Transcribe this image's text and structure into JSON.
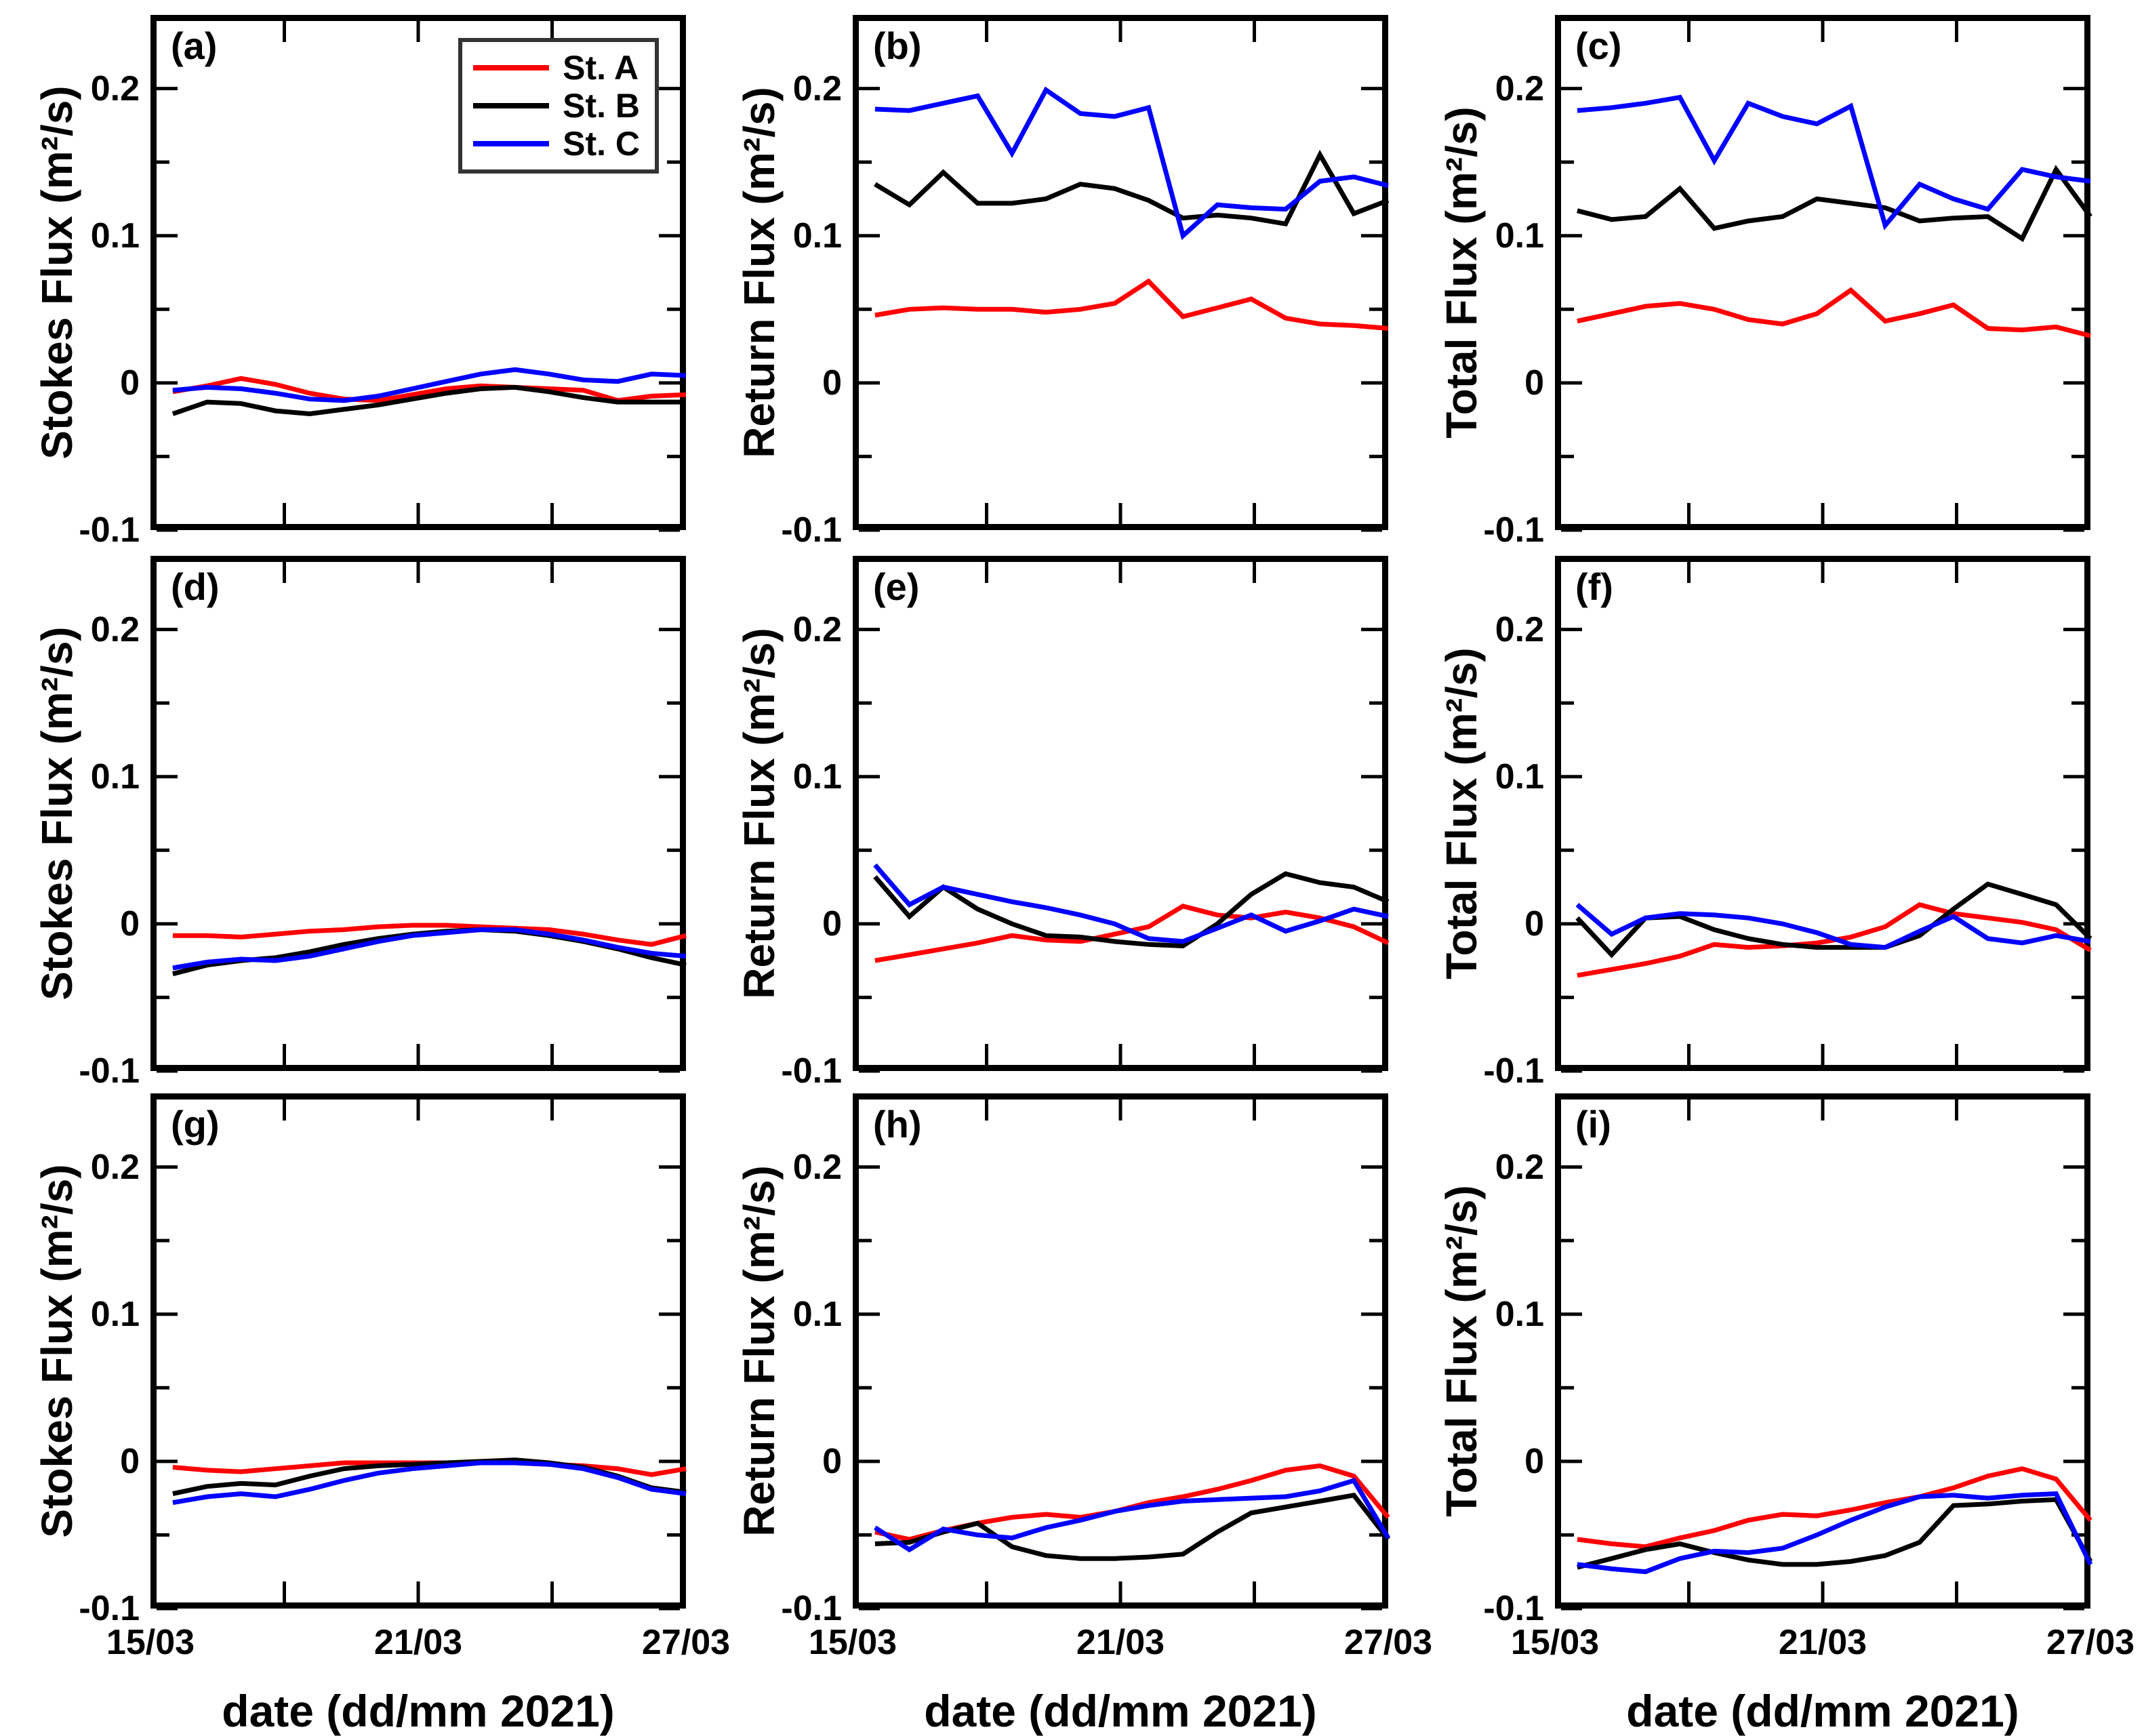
{
  "figure": {
    "background": "#ffffff"
  },
  "colors": {
    "st_a": "#ff0000",
    "st_b": "#000000",
    "st_c": "#0000ff",
    "axis": "#000000",
    "legend_border": "#333333"
  },
  "chart_data": {
    "type": "line",
    "layout": "3x3",
    "x_label": "date (dd/mm 2021)",
    "xlim": [
      15,
      27
    ],
    "ylim": [
      -0.1,
      0.25
    ],
    "grid": false,
    "x": [
      15.5,
      16.27,
      17.03,
      17.8,
      18.57,
      19.33,
      20.1,
      20.87,
      21.63,
      22.4,
      23.17,
      23.93,
      24.7,
      25.47,
      26.23,
      27.0
    ],
    "x_ticks": {
      "labels": [
        "15/03",
        "21/03",
        "27/03"
      ],
      "values": [
        15,
        21,
        27
      ],
      "inner_ticks": [
        18,
        21,
        24
      ]
    },
    "y_ticks": {
      "labels": [
        "0.2",
        "0.1",
        "0",
        "-0.1"
      ],
      "values": [
        0.2,
        0.1,
        0,
        -0.1
      ],
      "minor": [
        0.15,
        0.05,
        -0.05
      ]
    },
    "legend": {
      "location": "panel-a-top-right",
      "entries": [
        {
          "label": "St. A",
          "color": "#ff0000"
        },
        {
          "label": "St. B",
          "color": "#000000"
        },
        {
          "label": "St. C",
          "color": "#0000ff"
        }
      ]
    },
    "panels": [
      {
        "letter": "(a)",
        "row": 1,
        "col": 1,
        "ylabel": "Stokes Flux (m²/s)",
        "series": [
          {
            "name": "St. A",
            "color": "#ff0000",
            "values": [
              -0.006,
              -0.002,
              0.003,
              -0.001,
              -0.007,
              -0.011,
              -0.012,
              -0.008,
              -0.004,
              -0.002,
              -0.003,
              -0.004,
              -0.005,
              -0.012,
              -0.009,
              -0.008
            ]
          },
          {
            "name": "St. B",
            "color": "#000000",
            "values": [
              -0.021,
              -0.013,
              -0.014,
              -0.019,
              -0.021,
              -0.018,
              -0.015,
              -0.011,
              -0.007,
              -0.004,
              -0.003,
              -0.006,
              -0.01,
              -0.013,
              -0.013,
              -0.013
            ]
          },
          {
            "name": "St. C",
            "color": "#0000ff",
            "values": [
              -0.005,
              -0.003,
              -0.004,
              -0.007,
              -0.011,
              -0.012,
              -0.009,
              -0.004,
              0.001,
              0.006,
              0.009,
              0.006,
              0.002,
              0.001,
              0.006,
              0.005
            ]
          }
        ]
      },
      {
        "letter": "(b)",
        "row": 1,
        "col": 2,
        "ylabel": "Return Flux (m²/s)",
        "series": [
          {
            "name": "St. A",
            "color": "#ff0000",
            "values": [
              0.046,
              0.05,
              0.051,
              0.05,
              0.05,
              0.048,
              0.05,
              0.054,
              0.069,
              0.045,
              0.051,
              0.057,
              0.044,
              0.04,
              0.039,
              0.037
            ]
          },
          {
            "name": "St. B",
            "color": "#000000",
            "values": [
              0.135,
              0.121,
              0.143,
              0.122,
              0.122,
              0.125,
              0.135,
              0.132,
              0.124,
              0.112,
              0.114,
              0.112,
              0.108,
              0.155,
              0.115,
              0.124
            ]
          },
          {
            "name": "St. C",
            "color": "#0000ff",
            "values": [
              0.186,
              0.185,
              0.19,
              0.195,
              0.156,
              0.199,
              0.183,
              0.181,
              0.187,
              0.1,
              0.121,
              0.119,
              0.118,
              0.137,
              0.14,
              0.134
            ]
          }
        ]
      },
      {
        "letter": "(c)",
        "row": 1,
        "col": 3,
        "ylabel": "Total Flux (m²/s)",
        "series": [
          {
            "name": "St. A",
            "color": "#ff0000",
            "values": [
              0.042,
              0.047,
              0.052,
              0.054,
              0.05,
              0.043,
              0.04,
              0.047,
              0.063,
              0.042,
              0.047,
              0.053,
              0.037,
              0.036,
              0.038,
              0.032
            ]
          },
          {
            "name": "St. B",
            "color": "#000000",
            "values": [
              0.117,
              0.111,
              0.113,
              0.132,
              0.105,
              0.11,
              0.113,
              0.125,
              0.122,
              0.119,
              0.11,
              0.112,
              0.113,
              0.098,
              0.145,
              0.113
            ]
          },
          {
            "name": "St. C",
            "color": "#0000ff",
            "values": [
              0.185,
              0.187,
              0.19,
              0.194,
              0.151,
              0.19,
              0.181,
              0.176,
              0.188,
              0.107,
              0.135,
              0.125,
              0.118,
              0.145,
              0.14,
              0.137
            ]
          }
        ]
      },
      {
        "letter": "(d)",
        "row": 2,
        "col": 1,
        "ylabel": "Stokes Flux (m²/s)",
        "series": [
          {
            "name": "St. A",
            "color": "#ff0000",
            "values": [
              -0.008,
              -0.008,
              -0.009,
              -0.007,
              -0.005,
              -0.004,
              -0.002,
              -0.001,
              -0.001,
              -0.002,
              -0.003,
              -0.004,
              -0.007,
              -0.011,
              -0.014,
              -0.008
            ]
          },
          {
            "name": "St. B",
            "color": "#000000",
            "values": [
              -0.034,
              -0.028,
              -0.025,
              -0.023,
              -0.019,
              -0.014,
              -0.01,
              -0.007,
              -0.005,
              -0.004,
              -0.005,
              -0.008,
              -0.012,
              -0.017,
              -0.023,
              -0.028
            ]
          },
          {
            "name": "St. C",
            "color": "#0000ff",
            "values": [
              -0.03,
              -0.026,
              -0.024,
              -0.025,
              -0.022,
              -0.017,
              -0.012,
              -0.008,
              -0.006,
              -0.004,
              -0.004,
              -0.007,
              -0.011,
              -0.016,
              -0.02,
              -0.022
            ]
          }
        ]
      },
      {
        "letter": "(e)",
        "row": 2,
        "col": 2,
        "ylabel": "Return Flux (m²/s)",
        "series": [
          {
            "name": "St. A",
            "color": "#ff0000",
            "values": [
              -0.025,
              -0.021,
              -0.017,
              -0.013,
              -0.008,
              -0.011,
              -0.012,
              -0.007,
              -0.002,
              0.012,
              0.006,
              0.004,
              0.008,
              0.004,
              -0.002,
              -0.013
            ]
          },
          {
            "name": "St. B",
            "color": "#000000",
            "values": [
              0.032,
              0.005,
              0.025,
              0.01,
              0.0,
              -0.008,
              -0.009,
              -0.012,
              -0.014,
              -0.015,
              0.0,
              0.02,
              0.034,
              0.028,
              0.025,
              0.015
            ]
          },
          {
            "name": "St. C",
            "color": "#0000ff",
            "values": [
              0.04,
              0.013,
              0.025,
              0.02,
              0.015,
              0.011,
              0.006,
              0.0,
              -0.01,
              -0.012,
              -0.003,
              0.006,
              -0.005,
              0.002,
              0.01,
              0.005
            ]
          }
        ]
      },
      {
        "letter": "(f)",
        "row": 2,
        "col": 3,
        "ylabel": "Total Flux (m²/s)",
        "series": [
          {
            "name": "St. A",
            "color": "#ff0000",
            "values": [
              -0.035,
              -0.031,
              -0.027,
              -0.022,
              -0.014,
              -0.016,
              -0.015,
              -0.013,
              -0.009,
              -0.002,
              0.013,
              0.007,
              0.004,
              0.001,
              -0.004,
              -0.018
            ]
          },
          {
            "name": "St. B",
            "color": "#000000",
            "values": [
              0.004,
              -0.021,
              0.004,
              0.005,
              -0.004,
              -0.01,
              -0.014,
              -0.016,
              -0.016,
              -0.016,
              -0.008,
              0.01,
              0.027,
              0.02,
              0.013,
              -0.01
            ]
          },
          {
            "name": "St. C",
            "color": "#0000ff",
            "values": [
              0.013,
              -0.007,
              0.004,
              0.007,
              0.006,
              0.004,
              0.0,
              -0.006,
              -0.014,
              -0.016,
              -0.005,
              0.005,
              -0.01,
              -0.013,
              -0.008,
              -0.012
            ]
          }
        ]
      },
      {
        "letter": "(g)",
        "row": 3,
        "col": 1,
        "ylabel": "Stokes Flux (m²/s)",
        "series": [
          {
            "name": "St. A",
            "color": "#ff0000",
            "values": [
              -0.004,
              -0.006,
              -0.007,
              -0.005,
              -0.003,
              -0.001,
              -0.001,
              -0.001,
              -0.001,
              -0.001,
              -0.001,
              -0.002,
              -0.003,
              -0.005,
              -0.009,
              -0.005
            ]
          },
          {
            "name": "St. B",
            "color": "#000000",
            "values": [
              -0.022,
              -0.017,
              -0.015,
              -0.016,
              -0.01,
              -0.005,
              -0.003,
              -0.002,
              -0.001,
              0.0,
              0.001,
              -0.001,
              -0.004,
              -0.01,
              -0.018,
              -0.021
            ]
          },
          {
            "name": "St. C",
            "color": "#0000ff",
            "values": [
              -0.028,
              -0.024,
              -0.022,
              -0.024,
              -0.019,
              -0.013,
              -0.008,
              -0.005,
              -0.003,
              -0.001,
              -0.001,
              -0.002,
              -0.005,
              -0.011,
              -0.019,
              -0.022
            ]
          }
        ]
      },
      {
        "letter": "(h)",
        "row": 3,
        "col": 2,
        "ylabel": "Return Flux (m²/s)",
        "series": [
          {
            "name": "St. A",
            "color": "#ff0000",
            "values": [
              -0.048,
              -0.053,
              -0.047,
              -0.042,
              -0.038,
              -0.036,
              -0.038,
              -0.034,
              -0.028,
              -0.024,
              -0.019,
              -0.013,
              -0.006,
              -0.003,
              -0.01,
              -0.038
            ]
          },
          {
            "name": "St. B",
            "color": "#000000",
            "values": [
              -0.056,
              -0.055,
              -0.048,
              -0.042,
              -0.058,
              -0.064,
              -0.066,
              -0.066,
              -0.065,
              -0.063,
              -0.048,
              -0.035,
              -0.031,
              -0.027,
              -0.023,
              -0.053
            ]
          },
          {
            "name": "St. C",
            "color": "#0000ff",
            "values": [
              -0.045,
              -0.06,
              -0.046,
              -0.05,
              -0.052,
              -0.045,
              -0.04,
              -0.034,
              -0.03,
              -0.027,
              -0.026,
              -0.025,
              -0.024,
              -0.02,
              -0.013,
              -0.052
            ]
          }
        ]
      },
      {
        "letter": "(i)",
        "row": 3,
        "col": 3,
        "ylabel": "Total Flux (m²/s)",
        "series": [
          {
            "name": "St. A",
            "color": "#ff0000",
            "values": [
              -0.053,
              -0.056,
              -0.058,
              -0.052,
              -0.047,
              -0.04,
              -0.036,
              -0.037,
              -0.033,
              -0.028,
              -0.024,
              -0.018,
              -0.01,
              -0.005,
              -0.012,
              -0.04
            ]
          },
          {
            "name": "St. B",
            "color": "#000000",
            "values": [
              -0.072,
              -0.066,
              -0.06,
              -0.056,
              -0.062,
              -0.067,
              -0.07,
              -0.07,
              -0.068,
              -0.064,
              -0.055,
              -0.03,
              -0.029,
              -0.027,
              -0.026,
              -0.068
            ]
          },
          {
            "name": "St. C",
            "color": "#0000ff",
            "values": [
              -0.07,
              -0.073,
              -0.075,
              -0.066,
              -0.061,
              -0.062,
              -0.059,
              -0.05,
              -0.04,
              -0.031,
              -0.024,
              -0.023,
              -0.025,
              -0.023,
              -0.022,
              -0.07
            ]
          }
        ]
      }
    ]
  }
}
